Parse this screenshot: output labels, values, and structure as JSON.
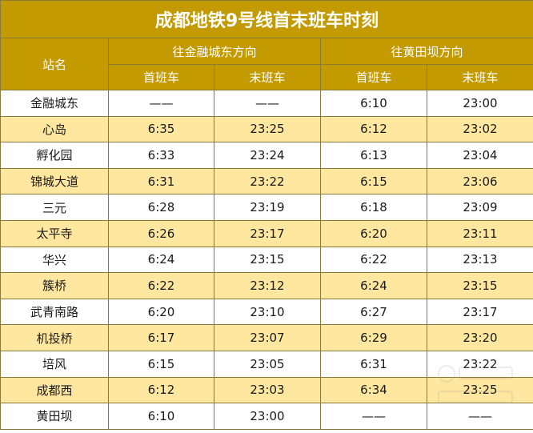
{
  "title": "成都地铁9号线首末班车时刻",
  "headers": {
    "station": "站名",
    "dir1": "往金融城东方向",
    "dir2": "往黄田坝方向",
    "first": "首班车",
    "last": "末班车"
  },
  "rows": [
    {
      "station": "金融城东",
      "d1_first": "——",
      "d1_last": "——",
      "d2_first": "6:10",
      "d2_last": "23:00"
    },
    {
      "station": "心岛",
      "d1_first": "6:35",
      "d1_last": "23:25",
      "d2_first": "6:12",
      "d2_last": "23:02"
    },
    {
      "station": "孵化园",
      "d1_first": "6:33",
      "d1_last": "23:24",
      "d2_first": "6:13",
      "d2_last": "23:04"
    },
    {
      "station": "锦城大道",
      "d1_first": "6:31",
      "d1_last": "23:22",
      "d2_first": "6:15",
      "d2_last": "23:06"
    },
    {
      "station": "三元",
      "d1_first": "6:28",
      "d1_last": "23:19",
      "d2_first": "6:18",
      "d2_last": "23:09"
    },
    {
      "station": "太平寺",
      "d1_first": "6:26",
      "d1_last": "23:17",
      "d2_first": "6:20",
      "d2_last": "23:11"
    },
    {
      "station": "华兴",
      "d1_first": "6:24",
      "d1_last": "23:15",
      "d2_first": "6:22",
      "d2_last": "23:13"
    },
    {
      "station": "簇桥",
      "d1_first": "6:22",
      "d1_last": "23:12",
      "d2_first": "6:24",
      "d2_last": "23:15"
    },
    {
      "station": "武青南路",
      "d1_first": "6:20",
      "d1_last": "23:10",
      "d2_first": "6:27",
      "d2_last": "23:17"
    },
    {
      "station": "机投桥",
      "d1_first": "6:17",
      "d1_last": "23:07",
      "d2_first": "6:29",
      "d2_last": "23:20"
    },
    {
      "station": "培风",
      "d1_first": "6:15",
      "d1_last": "23:05",
      "d2_first": "6:31",
      "d2_last": "23:22"
    },
    {
      "station": "成都西",
      "d1_first": "6:12",
      "d1_last": "23:03",
      "d2_first": "6:34",
      "d2_last": "23:25"
    },
    {
      "station": "黄田坝",
      "d1_first": "6:10",
      "d1_last": "23:00",
      "d2_first": "——",
      "d2_last": "——"
    }
  ]
}
